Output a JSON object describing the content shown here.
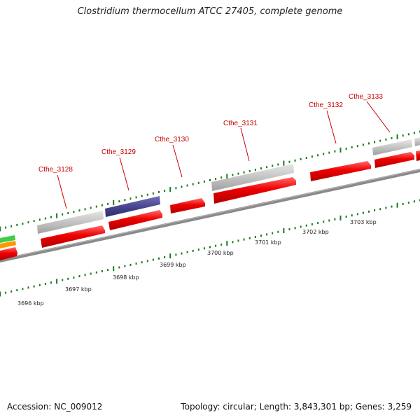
{
  "title": "Clostridium thermocellum ATCC 27405, complete genome",
  "footer": {
    "accession": "Accession: NC_009012",
    "summary": "Topology: circular; Length: 3,843,301 bp; Genes: 3,259"
  },
  "colors": {
    "gene_red": "#ee0000",
    "gene_grey": "#bdbdbd",
    "gene_navy": "#4a468f",
    "gene_green": "#44cc44",
    "gene_orange": "#ff9900",
    "backbone": "#8a8a8a",
    "tick_green": "#1a7a1a",
    "label_red": "#cc0000",
    "kbp_text": "#222222"
  },
  "kbp_labels": [
    "3696 kbp",
    "3697 kbp",
    "3698 kbp",
    "3699 kbp",
    "3700 kbp",
    "3701 kbp",
    "3702 kbp",
    "3703 kbp"
  ],
  "gene_labels": [
    "Cthe_3128",
    "Cthe_3129",
    "Cthe_3130",
    "Cthe_3131",
    "Cthe_3132",
    "Cthe_3133"
  ]
}
